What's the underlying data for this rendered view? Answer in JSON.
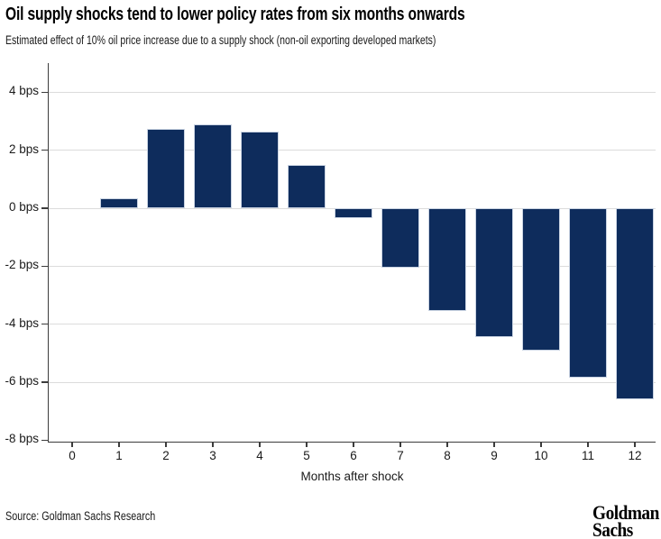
{
  "header": {
    "title": "Oil supply shocks tend to lower policy rates from six months onwards",
    "subtitle": "Estimated effect of 10% oil price increase due to a supply shock (non-oil exporting developed markets)"
  },
  "chart_data": {
    "type": "bar",
    "title": "Oil supply shocks tend to lower policy rates from six months onwards",
    "subtitle": "Estimated effect of 10% oil price increase due to a supply shock (non-oil exporting developed markets)",
    "xlabel": "Months after shock",
    "ylabel": "bps",
    "categories": [
      0,
      1,
      2,
      3,
      4,
      5,
      6,
      7,
      8,
      9,
      10,
      11,
      12
    ],
    "values": [
      0,
      0.35,
      2.75,
      2.9,
      2.65,
      1.5,
      -0.35,
      -2.05,
      -3.55,
      -4.45,
      -4.9,
      -5.85,
      -6.6
    ],
    "yticks": [
      {
        "value": 4,
        "label": "4 bps"
      },
      {
        "value": 2,
        "label": "2 bps"
      },
      {
        "value": 0,
        "label": "0 bps"
      },
      {
        "value": -2,
        "label": "-2 bps"
      },
      {
        "value": -4,
        "label": "-4 bps"
      },
      {
        "value": -6,
        "label": "-6 bps"
      },
      {
        "value": -8,
        "label": "-8 bps"
      }
    ],
    "ylim": [
      -8,
      5
    ],
    "grid": true,
    "legend": "none",
    "bar_color": "#0e2c5c",
    "bar_edge_color": "#c9d3e2"
  },
  "footer": {
    "source": "Source: Goldman Sachs Research",
    "logo_line1": "Goldman",
    "logo_line2": "Sachs"
  }
}
